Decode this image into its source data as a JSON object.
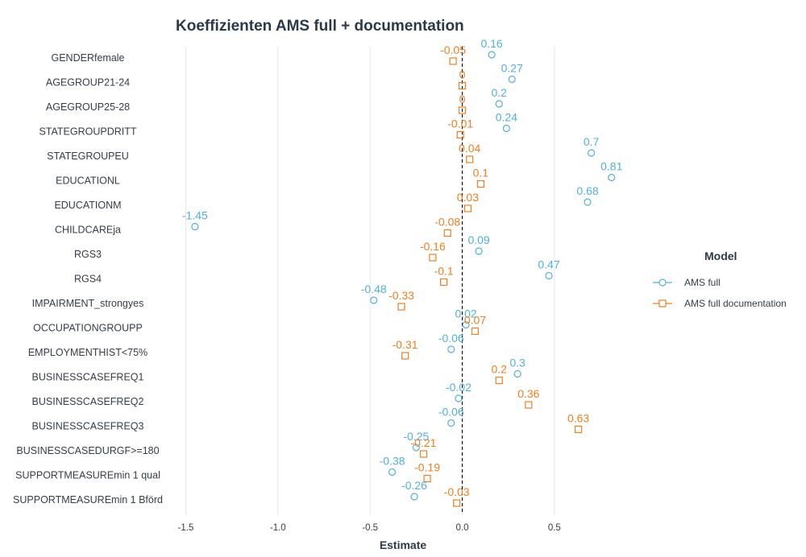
{
  "chart_data": {
    "type": "scatter",
    "title": "Koeffizienten AMS full + documentation",
    "xlabel": "Estimate",
    "ylabel": "",
    "xlim": [
      -1.6,
      0.88
    ],
    "xticks": [
      -1.5,
      -1.0,
      -0.5,
      0.0,
      0.5
    ],
    "xtick_labels": [
      "-1.5",
      "-1.0",
      "-0.5",
      "0.0",
      "0.5"
    ],
    "grid": "vertical",
    "reference_line": {
      "x": 0,
      "style": "dashed",
      "color": "#000000"
    },
    "legend": {
      "title": "Model",
      "position": "right"
    },
    "categories": [
      "GENDERfemale",
      "AGEGROUP21-24",
      "AGEGROUP25-28",
      "STATEGROUPDRITT",
      "STATEGROUPEU",
      "EDUCATIONL",
      "EDUCATIONM",
      "CHILDCAREja",
      "RGS3",
      "RGS4",
      "IMPAIRMENT_strongyes",
      "OCCUPATIONGROUPP",
      "EMPLOYMENTHIST<75%",
      "BUSINESSCASEFREQ1",
      "BUSINESSCASEFREQ2",
      "BUSINESSCASEFREQ3",
      "BUSINESSCASEDURGF>=180",
      "SUPPORTMEASUREmin 1 qual",
      "SUPPORTMEASUREmin 1 Bförd"
    ],
    "series": [
      {
        "name": "AMS full",
        "marker": "circle",
        "color": "#4fb1e0",
        "values": [
          0.16,
          0.27,
          0.2,
          0.24,
          0.7,
          0.81,
          0.68,
          -1.45,
          0.09,
          0.47,
          -0.48,
          0.02,
          -0.06,
          0.3,
          -0.02,
          -0.06,
          -0.25,
          -0.38,
          -0.26
        ],
        "labels": [
          "0.16",
          "0.27",
          "0.2",
          "0.24",
          "0.7",
          "0.81",
          "0.68",
          "-1.45",
          "0.09",
          "0.47",
          "-0.48",
          "0.02",
          "-0.06",
          "0.3",
          "-0.02",
          "-0.06",
          "-0.25",
          "-0.38",
          "-0.26"
        ]
      },
      {
        "name": "AMS full documentation",
        "marker": "square",
        "color": "#f07f1e",
        "values": [
          -0.05,
          0,
          0,
          -0.01,
          0.04,
          0.1,
          0.03,
          -0.08,
          -0.16,
          -0.1,
          -0.33,
          0.07,
          -0.31,
          0.2,
          0.36,
          0.63,
          -0.21,
          -0.19,
          -0.03
        ],
        "labels": [
          "-0.05",
          "0",
          "0",
          "-0.01",
          "0.04",
          "0.1",
          "0.03",
          "-0.08",
          "-0.16",
          "-0.1",
          "-0.33",
          "0.07",
          "-0.31",
          "0.2",
          "0.36",
          "0.63",
          "-0.21",
          "-0.19",
          "-0.03"
        ]
      }
    ]
  }
}
